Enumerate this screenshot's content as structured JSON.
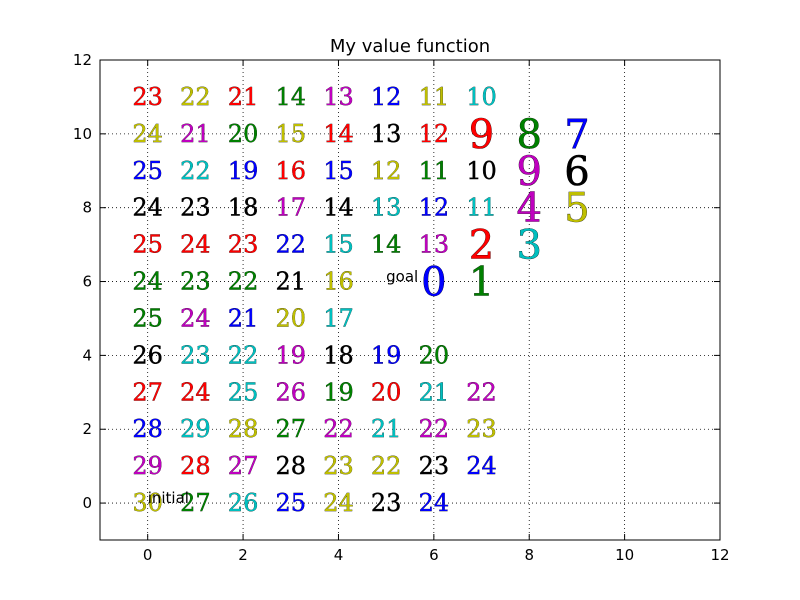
{
  "chart_data": {
    "type": "scatter",
    "title": "My value function",
    "xlabel": "",
    "ylabel": "",
    "xlim": [
      -1,
      12
    ],
    "ylim": [
      -1,
      12
    ],
    "xticks": [
      "0",
      "2",
      "4",
      "6",
      "8",
      "10",
      "12"
    ],
    "yticks": [
      "0",
      "2",
      "4",
      "6",
      "8",
      "10",
      "12"
    ],
    "grid": true,
    "colors": {
      "r": "#ff0000",
      "g": "#008000",
      "b": "#0000ff",
      "c": "#00bfbf",
      "m": "#bf00bf",
      "y": "#bfbf00",
      "k": "#000000"
    },
    "annotations": [
      {
        "text": "initial",
        "x": 0,
        "y": 0
      },
      {
        "text": "goal",
        "x": 5,
        "y": 6
      }
    ],
    "points": [
      {
        "x": 0,
        "y": 11,
        "value": "23",
        "color": "r"
      },
      {
        "x": 1,
        "y": 11,
        "value": "22",
        "color": "y"
      },
      {
        "x": 2,
        "y": 11,
        "value": "21",
        "color": "r"
      },
      {
        "x": 3,
        "y": 11,
        "value": "14",
        "color": "g"
      },
      {
        "x": 4,
        "y": 11,
        "value": "13",
        "color": "m"
      },
      {
        "x": 5,
        "y": 11,
        "value": "12",
        "color": "b"
      },
      {
        "x": 6,
        "y": 11,
        "value": "11",
        "color": "y"
      },
      {
        "x": 7,
        "y": 11,
        "value": "10",
        "color": "c"
      },
      {
        "x": 0,
        "y": 10,
        "value": "24",
        "color": "y"
      },
      {
        "x": 1,
        "y": 10,
        "value": "21",
        "color": "m"
      },
      {
        "x": 2,
        "y": 10,
        "value": "20",
        "color": "g"
      },
      {
        "x": 3,
        "y": 10,
        "value": "15",
        "color": "y"
      },
      {
        "x": 4,
        "y": 10,
        "value": "14",
        "color": "r"
      },
      {
        "x": 5,
        "y": 10,
        "value": "13",
        "color": "k"
      },
      {
        "x": 6,
        "y": 10,
        "value": "12",
        "color": "r"
      },
      {
        "x": 7,
        "y": 10,
        "value": "9",
        "color": "r"
      },
      {
        "x": 8,
        "y": 10,
        "value": "8",
        "color": "g"
      },
      {
        "x": 9,
        "y": 10,
        "value": "7",
        "color": "b"
      },
      {
        "x": 0,
        "y": 9,
        "value": "25",
        "color": "b"
      },
      {
        "x": 1,
        "y": 9,
        "value": "22",
        "color": "c"
      },
      {
        "x": 2,
        "y": 9,
        "value": "19",
        "color": "b"
      },
      {
        "x": 3,
        "y": 9,
        "value": "16",
        "color": "r"
      },
      {
        "x": 4,
        "y": 9,
        "value": "15",
        "color": "b"
      },
      {
        "x": 5,
        "y": 9,
        "value": "12",
        "color": "y"
      },
      {
        "x": 6,
        "y": 9,
        "value": "11",
        "color": "g"
      },
      {
        "x": 7,
        "y": 9,
        "value": "10",
        "color": "k"
      },
      {
        "x": 8,
        "y": 9,
        "value": "9",
        "color": "m"
      },
      {
        "x": 9,
        "y": 9,
        "value": "6",
        "color": "k"
      },
      {
        "x": 0,
        "y": 8,
        "value": "24",
        "color": "k"
      },
      {
        "x": 1,
        "y": 8,
        "value": "23",
        "color": "k"
      },
      {
        "x": 2,
        "y": 8,
        "value": "18",
        "color": "k"
      },
      {
        "x": 3,
        "y": 8,
        "value": "17",
        "color": "m"
      },
      {
        "x": 4,
        "y": 8,
        "value": "14",
        "color": "k"
      },
      {
        "x": 5,
        "y": 8,
        "value": "13",
        "color": "c"
      },
      {
        "x": 6,
        "y": 8,
        "value": "12",
        "color": "b"
      },
      {
        "x": 7,
        "y": 8,
        "value": "11",
        "color": "c"
      },
      {
        "x": 8,
        "y": 8,
        "value": "4",
        "color": "m"
      },
      {
        "x": 9,
        "y": 8,
        "value": "5",
        "color": "y"
      },
      {
        "x": 0,
        "y": 7,
        "value": "25",
        "color": "r"
      },
      {
        "x": 1,
        "y": 7,
        "value": "24",
        "color": "r"
      },
      {
        "x": 2,
        "y": 7,
        "value": "23",
        "color": "r"
      },
      {
        "x": 3,
        "y": 7,
        "value": "22",
        "color": "b"
      },
      {
        "x": 4,
        "y": 7,
        "value": "15",
        "color": "c"
      },
      {
        "x": 5,
        "y": 7,
        "value": "14",
        "color": "g"
      },
      {
        "x": 6,
        "y": 7,
        "value": "13",
        "color": "m"
      },
      {
        "x": 7,
        "y": 7,
        "value": "2",
        "color": "r"
      },
      {
        "x": 8,
        "y": 7,
        "value": "3",
        "color": "c"
      },
      {
        "x": 0,
        "y": 6,
        "value": "24",
        "color": "g"
      },
      {
        "x": 1,
        "y": 6,
        "value": "23",
        "color": "g"
      },
      {
        "x": 2,
        "y": 6,
        "value": "22",
        "color": "g"
      },
      {
        "x": 3,
        "y": 6,
        "value": "21",
        "color": "k"
      },
      {
        "x": 4,
        "y": 6,
        "value": "16",
        "color": "y"
      },
      {
        "x": 6,
        "y": 6,
        "value": "0",
        "color": "b"
      },
      {
        "x": 7,
        "y": 6,
        "value": "1",
        "color": "g"
      },
      {
        "x": 0,
        "y": 5,
        "value": "25",
        "color": "g"
      },
      {
        "x": 1,
        "y": 5,
        "value": "24",
        "color": "m"
      },
      {
        "x": 2,
        "y": 5,
        "value": "21",
        "color": "b"
      },
      {
        "x": 3,
        "y": 5,
        "value": "20",
        "color": "y"
      },
      {
        "x": 4,
        "y": 5,
        "value": "17",
        "color": "c"
      },
      {
        "x": 0,
        "y": 4,
        "value": "26",
        "color": "k"
      },
      {
        "x": 1,
        "y": 4,
        "value": "23",
        "color": "c"
      },
      {
        "x": 2,
        "y": 4,
        "value": "22",
        "color": "c"
      },
      {
        "x": 3,
        "y": 4,
        "value": "19",
        "color": "m"
      },
      {
        "x": 4,
        "y": 4,
        "value": "18",
        "color": "k"
      },
      {
        "x": 5,
        "y": 4,
        "value": "19",
        "color": "b"
      },
      {
        "x": 6,
        "y": 4,
        "value": "20",
        "color": "g"
      },
      {
        "x": 0,
        "y": 3,
        "value": "27",
        "color": "r"
      },
      {
        "x": 1,
        "y": 3,
        "value": "24",
        "color": "r"
      },
      {
        "x": 2,
        "y": 3,
        "value": "25",
        "color": "c"
      },
      {
        "x": 3,
        "y": 3,
        "value": "26",
        "color": "m"
      },
      {
        "x": 4,
        "y": 3,
        "value": "19",
        "color": "g"
      },
      {
        "x": 5,
        "y": 3,
        "value": "20",
        "color": "r"
      },
      {
        "x": 6,
        "y": 3,
        "value": "21",
        "color": "c"
      },
      {
        "x": 7,
        "y": 3,
        "value": "22",
        "color": "m"
      },
      {
        "x": 0,
        "y": 2,
        "value": "28",
        "color": "b"
      },
      {
        "x": 1,
        "y": 2,
        "value": "29",
        "color": "c"
      },
      {
        "x": 2,
        "y": 2,
        "value": "28",
        "color": "y"
      },
      {
        "x": 3,
        "y": 2,
        "value": "27",
        "color": "g"
      },
      {
        "x": 4,
        "y": 2,
        "value": "22",
        "color": "m"
      },
      {
        "x": 5,
        "y": 2,
        "value": "21",
        "color": "c"
      },
      {
        "x": 6,
        "y": 2,
        "value": "22",
        "color": "m"
      },
      {
        "x": 7,
        "y": 2,
        "value": "23",
        "color": "y"
      },
      {
        "x": 0,
        "y": 1,
        "value": "29",
        "color": "m"
      },
      {
        "x": 1,
        "y": 1,
        "value": "28",
        "color": "r"
      },
      {
        "x": 2,
        "y": 1,
        "value": "27",
        "color": "m"
      },
      {
        "x": 3,
        "y": 1,
        "value": "28",
        "color": "k"
      },
      {
        "x": 4,
        "y": 1,
        "value": "23",
        "color": "y"
      },
      {
        "x": 5,
        "y": 1,
        "value": "22",
        "color": "y"
      },
      {
        "x": 6,
        "y": 1,
        "value": "23",
        "color": "k"
      },
      {
        "x": 7,
        "y": 1,
        "value": "24",
        "color": "b"
      },
      {
        "x": 0,
        "y": 0,
        "value": "30",
        "color": "y"
      },
      {
        "x": 1,
        "y": 0,
        "value": "27",
        "color": "g"
      },
      {
        "x": 2,
        "y": 0,
        "value": "26",
        "color": "c"
      },
      {
        "x": 3,
        "y": 0,
        "value": "25",
        "color": "b"
      },
      {
        "x": 4,
        "y": 0,
        "value": "24",
        "color": "y"
      },
      {
        "x": 5,
        "y": 0,
        "value": "23",
        "color": "k"
      },
      {
        "x": 6,
        "y": 0,
        "value": "24",
        "color": "b"
      }
    ]
  }
}
